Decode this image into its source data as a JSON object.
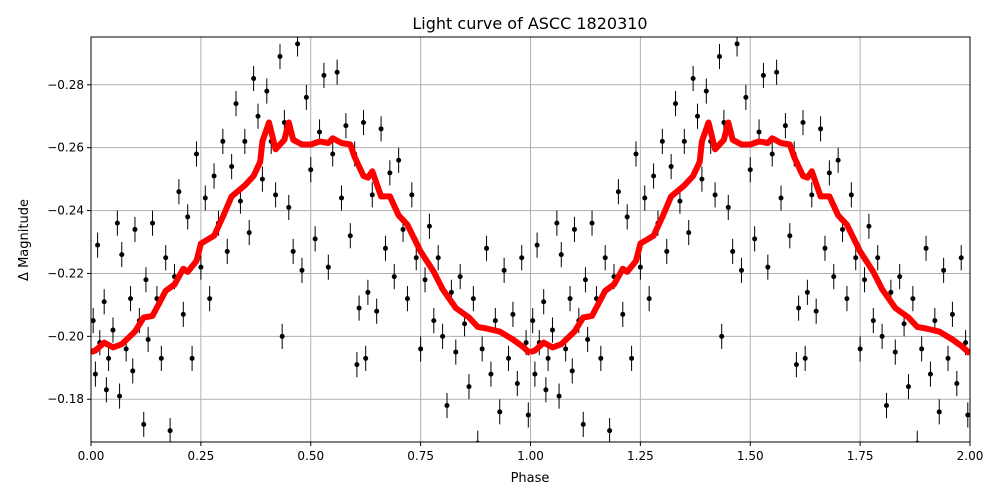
{
  "chart_data": {
    "type": "scatter",
    "title": "Light curve of ASCC 1820310",
    "xlabel": "Phase",
    "ylabel": "Δ Magnitude",
    "xlim": [
      0.0,
      2.0
    ],
    "ylim": [
      -0.1664,
      -0.2952
    ],
    "y_inverted": true,
    "grid": true,
    "xticks": [
      "0.00",
      "0.25",
      "0.50",
      "0.75",
      "1.00",
      "1.25",
      "1.50",
      "1.75",
      "2.00"
    ],
    "xtick_values": [
      0,
      0.25,
      0.5,
      0.75,
      1,
      1.25,
      1.5,
      1.75,
      2
    ],
    "yticks": [
      "−0.28",
      "−0.26",
      "−0.24",
      "−0.22",
      "−0.20",
      "−0.18"
    ],
    "ytick_values": [
      -0.28,
      -0.26,
      -0.24,
      -0.22,
      -0.2,
      -0.18
    ],
    "points_repeat_period": 1.0,
    "point_color": "#000000",
    "typical_error": 0.004,
    "points": [
      [
        0.005,
        -0.205
      ],
      [
        0.01,
        -0.188
      ],
      [
        0.015,
        -0.229
      ],
      [
        0.02,
        -0.198
      ],
      [
        0.03,
        -0.211
      ],
      [
        0.035,
        -0.183
      ],
      [
        0.04,
        -0.193
      ],
      [
        0.05,
        -0.202
      ],
      [
        0.06,
        -0.236
      ],
      [
        0.065,
        -0.181
      ],
      [
        0.07,
        -0.226
      ],
      [
        0.08,
        -0.196
      ],
      [
        0.09,
        -0.212
      ],
      [
        0.095,
        -0.189
      ],
      [
        0.1,
        -0.234
      ],
      [
        0.11,
        -0.205
      ],
      [
        0.12,
        -0.172
      ],
      [
        0.125,
        -0.218
      ],
      [
        0.13,
        -0.199
      ],
      [
        0.14,
        -0.236
      ],
      [
        0.15,
        -0.212
      ],
      [
        0.16,
        -0.193
      ],
      [
        0.17,
        -0.225
      ],
      [
        0.18,
        -0.17
      ],
      [
        0.19,
        -0.219
      ],
      [
        0.2,
        -0.246
      ],
      [
        0.21,
        -0.207
      ],
      [
        0.22,
        -0.238
      ],
      [
        0.23,
        -0.193
      ],
      [
        0.24,
        -0.258
      ],
      [
        0.25,
        -0.222
      ],
      [
        0.26,
        -0.244
      ],
      [
        0.27,
        -0.212
      ],
      [
        0.28,
        -0.251
      ],
      [
        0.29,
        -0.236
      ],
      [
        0.3,
        -0.262
      ],
      [
        0.31,
        -0.227
      ],
      [
        0.32,
        -0.254
      ],
      [
        0.33,
        -0.274
      ],
      [
        0.34,
        -0.243
      ],
      [
        0.35,
        -0.262
      ],
      [
        0.36,
        -0.233
      ],
      [
        0.37,
        -0.282
      ],
      [
        0.38,
        -0.27
      ],
      [
        0.39,
        -0.25
      ],
      [
        0.4,
        -0.278
      ],
      [
        0.41,
        -0.262
      ],
      [
        0.42,
        -0.245
      ],
      [
        0.43,
        -0.289
      ],
      [
        0.435,
        -0.2
      ],
      [
        0.44,
        -0.268
      ],
      [
        0.45,
        -0.241
      ],
      [
        0.46,
        -0.227
      ],
      [
        0.47,
        -0.293
      ],
      [
        0.48,
        -0.221
      ],
      [
        0.49,
        -0.276
      ],
      [
        0.5,
        -0.253
      ],
      [
        0.51,
        -0.231
      ],
      [
        0.52,
        -0.265
      ],
      [
        0.53,
        -0.283
      ],
      [
        0.54,
        -0.222
      ],
      [
        0.55,
        -0.258
      ],
      [
        0.56,
        -0.284
      ],
      [
        0.57,
        -0.244
      ],
      [
        0.58,
        -0.267
      ],
      [
        0.59,
        -0.232
      ],
      [
        0.6,
        -0.258
      ],
      [
        0.605,
        -0.191
      ],
      [
        0.61,
        -0.209
      ],
      [
        0.62,
        -0.268
      ],
      [
        0.625,
        -0.193
      ],
      [
        0.63,
        -0.214
      ],
      [
        0.64,
        -0.245
      ],
      [
        0.65,
        -0.208
      ],
      [
        0.66,
        -0.266
      ],
      [
        0.67,
        -0.228
      ],
      [
        0.68,
        -0.252
      ],
      [
        0.69,
        -0.219
      ],
      [
        0.7,
        -0.256
      ],
      [
        0.71,
        -0.234
      ],
      [
        0.72,
        -0.212
      ],
      [
        0.73,
        -0.245
      ],
      [
        0.74,
        -0.225
      ],
      [
        0.75,
        -0.196
      ],
      [
        0.76,
        -0.218
      ],
      [
        0.77,
        -0.235
      ],
      [
        0.78,
        -0.205
      ],
      [
        0.79,
        -0.225
      ],
      [
        0.8,
        -0.2
      ],
      [
        0.81,
        -0.178
      ],
      [
        0.82,
        -0.214
      ],
      [
        0.83,
        -0.195
      ],
      [
        0.84,
        -0.219
      ],
      [
        0.85,
        -0.204
      ],
      [
        0.86,
        -0.184
      ],
      [
        0.87,
        -0.212
      ],
      [
        0.88,
        -0.166
      ],
      [
        0.89,
        -0.196
      ],
      [
        0.9,
        -0.228
      ],
      [
        0.91,
        -0.188
      ],
      [
        0.92,
        -0.205
      ],
      [
        0.93,
        -0.176
      ],
      [
        0.94,
        -0.221
      ],
      [
        0.95,
        -0.193
      ],
      [
        0.96,
        -0.207
      ],
      [
        0.97,
        -0.185
      ],
      [
        0.98,
        -0.225
      ],
      [
        0.99,
        -0.198
      ],
      [
        0.995,
        -0.175
      ]
    ],
    "binned_curve": {
      "color": "#ff0000",
      "x": [
        0,
        0.01,
        0.03,
        0.05,
        0.07,
        0.1,
        0.12,
        0.14,
        0.17,
        0.19,
        0.21,
        0.22,
        0.24,
        0.25,
        0.28,
        0.3,
        0.32,
        0.35,
        0.37,
        0.385,
        0.39,
        0.405,
        0.42,
        0.44,
        0.45,
        0.46,
        0.48,
        0.5,
        0.52,
        0.54,
        0.55,
        0.57,
        0.59,
        0.6,
        0.62,
        0.63,
        0.64,
        0.66,
        0.68,
        0.7,
        0.72,
        0.75,
        0.78,
        0.8,
        0.83,
        0.86,
        0.88,
        0.9,
        0.93,
        0.96,
        0.98,
        1.0
      ],
      "y": [
        -0.195,
        -0.1955,
        -0.198,
        -0.1965,
        -0.1975,
        -0.2015,
        -0.206,
        -0.2065,
        -0.2145,
        -0.2165,
        -0.2215,
        -0.2205,
        -0.224,
        -0.2295,
        -0.232,
        -0.238,
        -0.2445,
        -0.248,
        -0.251,
        -0.2555,
        -0.262,
        -0.268,
        -0.2595,
        -0.2625,
        -0.268,
        -0.2625,
        -0.261,
        -0.261,
        -0.262,
        -0.2615,
        -0.263,
        -0.2615,
        -0.261,
        -0.257,
        -0.251,
        -0.2505,
        -0.2525,
        -0.2445,
        -0.2445,
        -0.2385,
        -0.2355,
        -0.227,
        -0.2205,
        -0.215,
        -0.209,
        -0.206,
        -0.203,
        -0.2025,
        -0.2015,
        -0.199,
        -0.197,
        -0.1945
      ]
    }
  }
}
